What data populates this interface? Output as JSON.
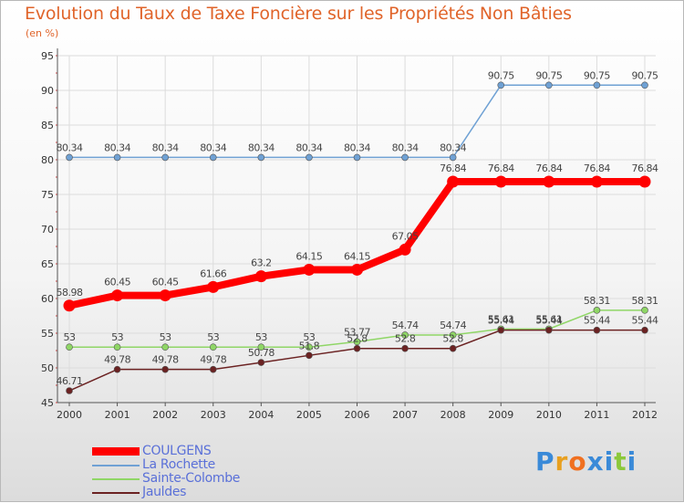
{
  "title": "Evolution du Taux de Taxe Foncière sur les Propriétés Non Bâties",
  "unit": "(en %)",
  "logo": [
    "P",
    "r",
    "o",
    "x",
    "i",
    "t",
    "i"
  ],
  "logo_colors": [
    "#3a8ad8",
    "#e8a020",
    "#f07020",
    "#3a8ad8",
    "#3a8ad8",
    "#8cc83c",
    "#3a8ad8"
  ],
  "chart_data": {
    "type": "line",
    "title": "Evolution du Taux de Taxe Foncière sur les Propriétés Non Bâties",
    "ylabel": "(en %)",
    "xlabel": "",
    "x": [
      "2000",
      "2001",
      "2002",
      "2003",
      "2004",
      "2005",
      "2006",
      "2007",
      "2008",
      "2009",
      "2010",
      "2011",
      "2012"
    ],
    "ylim": [
      45,
      95
    ],
    "yticks": [
      "45",
      "50",
      "55",
      "60",
      "65",
      "70",
      "75",
      "80",
      "85",
      "90",
      "95"
    ],
    "grid": true,
    "legend_position": "bottom-left",
    "series": [
      {
        "name": "COULGENS",
        "color": "#ff0000",
        "weight": "thick",
        "values": [
          58.98,
          60.45,
          60.45,
          61.66,
          63.2,
          64.15,
          64.15,
          67.05,
          76.84,
          76.84,
          76.84,
          76.84,
          76.84
        ],
        "labels": [
          "58.98",
          "60.45",
          "60.45",
          "61.66",
          "63.2",
          "64.15",
          "64.15",
          "67.05",
          "76.84",
          "76.84",
          "76.84",
          "76.84",
          "76.84"
        ]
      },
      {
        "name": "La Rochette",
        "color": "#6fa1d4",
        "weight": "thin",
        "values": [
          80.34,
          80.34,
          80.34,
          80.34,
          80.34,
          80.34,
          80.34,
          80.34,
          80.34,
          90.75,
          90.75,
          90.75,
          90.75
        ],
        "labels": [
          "80.34",
          "80.34",
          "80.34",
          "80.34",
          "80.34",
          "80.34",
          "80.34",
          "80.34",
          "80.34",
          "90.75",
          "90.75",
          "90.75",
          "90.75"
        ]
      },
      {
        "name": "Sainte-Colombe",
        "color": "#8fd666",
        "weight": "thin",
        "values": [
          53,
          53,
          53,
          53,
          53,
          53,
          53.77,
          54.74,
          54.74,
          55.61,
          55.61,
          58.31,
          58.31
        ],
        "labels": [
          "53",
          "53",
          "53",
          "53",
          "53",
          "53",
          "53.77",
          "54.74",
          "54.74",
          "55.61",
          "55.61",
          "58.31",
          "58.31"
        ]
      },
      {
        "name": "Jauldes",
        "color": "#6b2222",
        "weight": "thin",
        "values": [
          46.71,
          49.78,
          49.78,
          49.78,
          50.78,
          51.8,
          52.8,
          52.8,
          52.8,
          55.44,
          55.44,
          55.44,
          55.44
        ],
        "labels": [
          "46.71",
          "49.78",
          "49.78",
          "49.78",
          "50.78",
          "51.8",
          "52.8",
          "52.8",
          "52.8",
          "55.44",
          "55.44",
          "55.44",
          "55.44"
        ]
      }
    ]
  }
}
